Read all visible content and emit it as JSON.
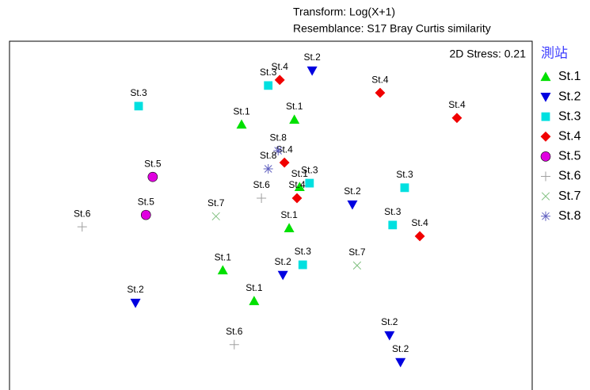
{
  "chart_data": {
    "type": "scatter",
    "header": [
      "Transform: Log(X+1)",
      "Resemblance: S17 Bray Curtis similarity"
    ],
    "annotation": "2D Stress: 0.21",
    "legend_title": "測站",
    "legend": "right",
    "xlim": [
      0,
      100
    ],
    "ylim": [
      0,
      100
    ],
    "series": [
      {
        "name": "St.1",
        "color": "#00e000",
        "marker": "triangle-up",
        "x": [
          44.4,
          54.5,
          55.5,
          53.5,
          40.8,
          46.8
        ],
        "y": [
          76.1,
          77.5,
          58.2,
          46.4,
          34.3,
          25.5
        ]
      },
      {
        "name": "St.2",
        "color": "#0000e0",
        "marker": "triangle-down",
        "x": [
          57.9,
          65.6,
          52.3,
          24.1,
          72.7,
          74.8
        ],
        "y": [
          91.6,
          53.2,
          33.0,
          25.0,
          15.7,
          8.0
        ]
      },
      {
        "name": "St.3",
        "color": "#00e0e0",
        "marker": "square",
        "x": [
          49.5,
          24.7,
          57.4,
          75.6,
          73.3,
          56.1
        ],
        "y": [
          87.3,
          81.4,
          59.3,
          58.0,
          47.3,
          35.9
        ]
      },
      {
        "name": "St.4",
        "color": "#f00000",
        "marker": "diamond",
        "x": [
          51.7,
          70.9,
          85.6,
          52.6,
          55.0,
          78.5
        ],
        "y": [
          88.9,
          85.2,
          78.0,
          65.2,
          55.0,
          44.1
        ]
      },
      {
        "name": "St.5",
        "color": "#e000e0",
        "marker": "circle",
        "x": [
          27.4,
          26.1
        ],
        "y": [
          61.1,
          50.2
        ]
      },
      {
        "name": "St.6",
        "color": "#a0a0a0",
        "marker": "plus",
        "x": [
          13.9,
          48.2,
          43.0
        ],
        "y": [
          46.8,
          55.0,
          13.0
        ]
      },
      {
        "name": "St.7",
        "color": "#80c080",
        "marker": "cross",
        "x": [
          39.5,
          66.5
        ],
        "y": [
          49.8,
          35.7
        ]
      },
      {
        "name": "St.8",
        "color": "#6060c0",
        "marker": "asterisk",
        "x": [
          51.4,
          49.5
        ],
        "y": [
          68.6,
          63.4
        ]
      }
    ]
  }
}
